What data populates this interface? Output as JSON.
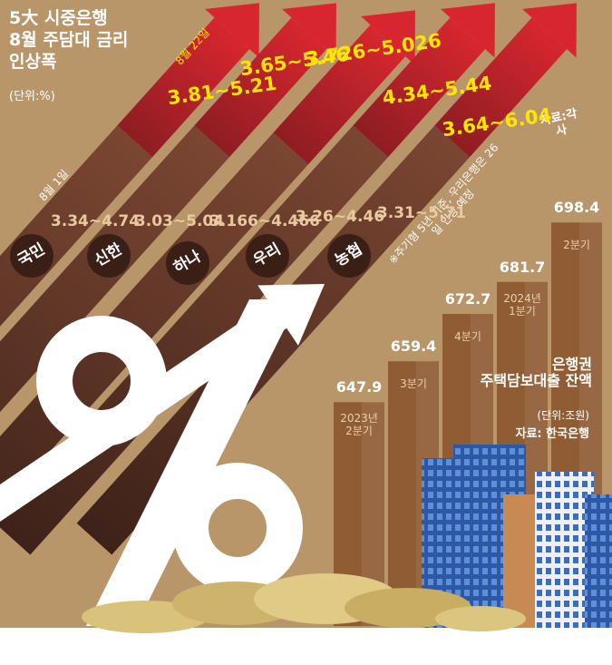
{
  "title": "5大 시중은행\n8월 주담대 금리\n인상폭",
  "unit": "(단위:%)",
  "date_old": "8월 1일",
  "date_new": "8월 22일",
  "source": "자료:각 사",
  "note": "※주기형 5년 기준, 우리은행은 26일 인상 예정",
  "banks": [
    {
      "name": "국민",
      "aug1": "3.34~4.74",
      "aug22": "3.81~5.21"
    },
    {
      "name": "신한",
      "aug1": "3.03~5.04",
      "aug22": "3.65~5.46"
    },
    {
      "name": "하나",
      "aug1": "3.166~4.466",
      "aug22": "3.726~5.026"
    },
    {
      "name": "우리",
      "aug1": "3.26~4.46",
      "aug22": "4.34~5.44"
    },
    {
      "name": "농협",
      "aug1": "3.31~5.71",
      "aug22": "3.64~6.04"
    }
  ],
  "chart_data": {
    "type": "bar",
    "title": "은행권\n주택담보대출 잔액",
    "unit": "(단위:조원)",
    "source": "자료: 한국은행",
    "categories": [
      "2023년\n2분기",
      "3분기",
      "4분기",
      "2024년\n1분기",
      "2분기"
    ],
    "values": [
      647.9,
      659.4,
      672.7,
      681.7,
      698.4
    ],
    "color": "#8f5c34",
    "ylim": [
      585,
      700
    ]
  }
}
